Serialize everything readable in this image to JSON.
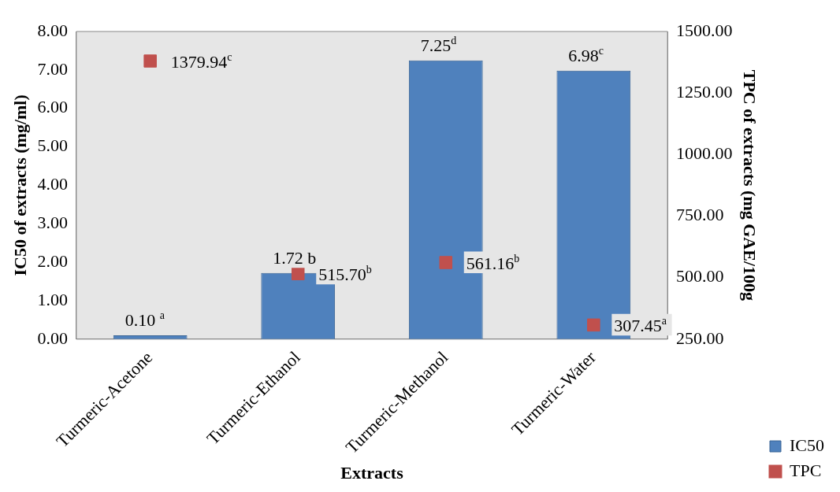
{
  "chart_data": {
    "type": "bar",
    "xlabel": "Extracts",
    "ylabel": "IC50 of extracts (mg/ml)",
    "y2label": "TPC of extracts (mg GAE/100g",
    "categories": [
      "Turmeric-Acetone",
      "Turmeric-Ethanol",
      "Turmeric-Methanol",
      "Turmeric-Water"
    ],
    "series": [
      {
        "name": "IC50",
        "color": "#4f81bd",
        "values": [
          0.1,
          1.72,
          7.25,
          6.98
        ],
        "value_labels": [
          "0.10 $^{a}$",
          "1.72 b",
          "7.25$^{d}$",
          "6.98$^{c}$"
        ]
      },
      {
        "name": "TPC",
        "type": "scatter",
        "axis": "y2",
        "color": "#c0504d",
        "x": [
          "Turmeric-Acetone",
          "Turmeric-Ethanol",
          "Turmeric-Methanol",
          "Turmeric-Water"
        ],
        "values": [
          1379.94,
          515.7,
          561.16,
          307.45
        ],
        "value_labels": [
          "1379.94$^{c}$",
          "515.70$^{b}$",
          "561.16$^{b}$",
          "307.45$^{a}$"
        ]
      }
    ],
    "ylim": [
      0,
      8
    ],
    "yticks": [
      {
        "value": 0,
        "label": "0.00"
      },
      {
        "value": 1,
        "label": "1.00"
      },
      {
        "value": 2,
        "label": "2.00"
      },
      {
        "value": 3,
        "label": "3.00"
      },
      {
        "value": 4,
        "label": "4.00"
      },
      {
        "value": 5,
        "label": "5.00"
      },
      {
        "value": 6,
        "label": "6.00"
      },
      {
        "value": 7,
        "label": "7.00"
      },
      {
        "value": 8,
        "label": "8.00"
      }
    ],
    "y2lim": [
      250,
      1500
    ],
    "y2ticks": [
      {
        "value": 250,
        "label": "250.00"
      },
      {
        "value": 500,
        "label": "500.00"
      },
      {
        "value": 750,
        "label": "750.00"
      },
      {
        "value": 1000,
        "label": "1000.00"
      },
      {
        "value": 1250,
        "label": "1250.00"
      },
      {
        "value": 1500,
        "label": "1500.00"
      }
    ],
    "grid": false,
    "legend": "bottom right",
    "marker": "square"
  }
}
